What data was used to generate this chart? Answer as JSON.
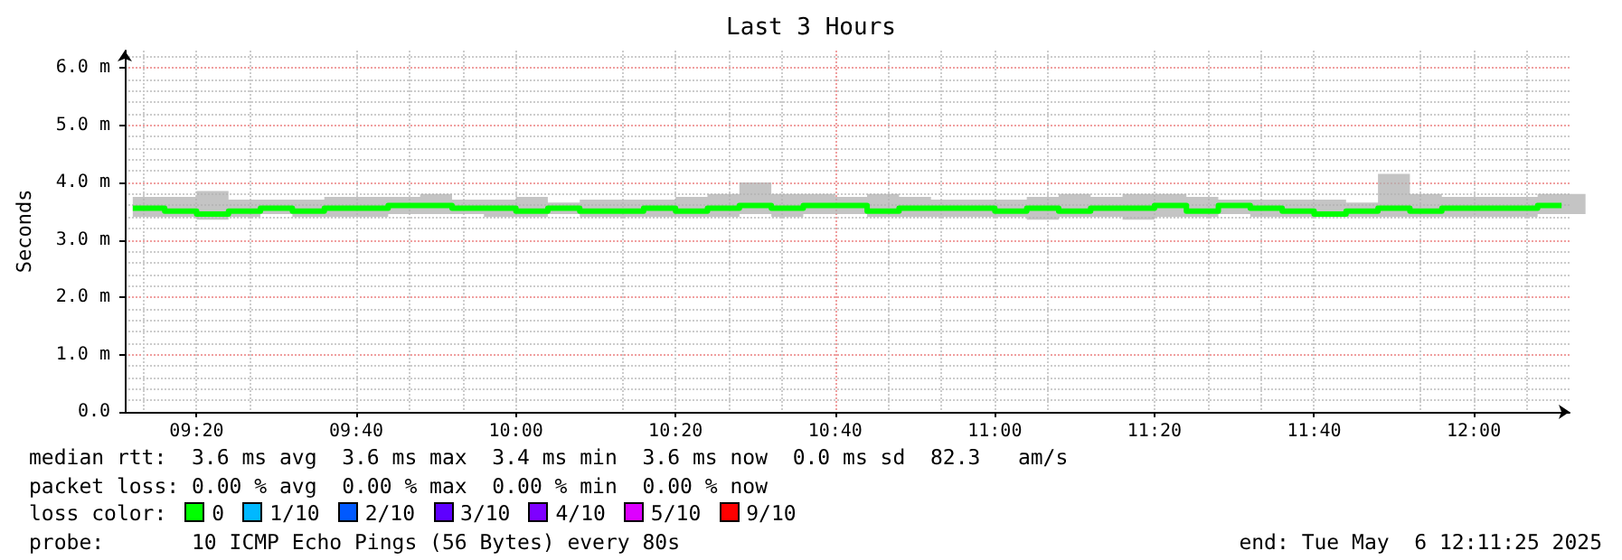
{
  "chart_data": {
    "type": "step",
    "title": "Last 3 Hours",
    "ylabel": "Seconds",
    "x": [
      "2025-05-06T09:12",
      "2025-05-06T09:16",
      "2025-05-06T09:20",
      "2025-05-06T09:24",
      "2025-05-06T09:28",
      "2025-05-06T09:32",
      "2025-05-06T09:36",
      "2025-05-06T09:40",
      "2025-05-06T09:44",
      "2025-05-06T09:48",
      "2025-05-06T09:52",
      "2025-05-06T09:56",
      "2025-05-06T10:00",
      "2025-05-06T10:04",
      "2025-05-06T10:08",
      "2025-05-06T10:12",
      "2025-05-06T10:16",
      "2025-05-06T10:20",
      "2025-05-06T10:24",
      "2025-05-06T10:28",
      "2025-05-06T10:32",
      "2025-05-06T10:36",
      "2025-05-06T10:40",
      "2025-05-06T10:44",
      "2025-05-06T10:48",
      "2025-05-06T10:52",
      "2025-05-06T10:56",
      "2025-05-06T11:00",
      "2025-05-06T11:04",
      "2025-05-06T11:08",
      "2025-05-06T11:12",
      "2025-05-06T11:16",
      "2025-05-06T11:20",
      "2025-05-06T11:24",
      "2025-05-06T11:28",
      "2025-05-06T11:32",
      "2025-05-06T11:36",
      "2025-05-06T11:40",
      "2025-05-06T11:44",
      "2025-05-06T11:48",
      "2025-05-06T11:52",
      "2025-05-06T11:56",
      "2025-05-06T12:00",
      "2025-05-06T12:04",
      "2025-05-06T12:08",
      "2025-05-06T12:11"
    ],
    "series": [
      {
        "color": "#00ff00",
        "values": [
          3.55,
          3.5,
          3.45,
          3.5,
          3.55,
          3.5,
          3.55,
          3.55,
          3.6,
          3.6,
          3.55,
          3.55,
          3.5,
          3.55,
          3.5,
          3.5,
          3.55,
          3.5,
          3.55,
          3.6,
          3.55,
          3.6,
          3.6,
          3.5,
          3.55,
          3.55,
          3.55,
          3.5,
          3.55,
          3.5,
          3.55,
          3.55,
          3.6,
          3.5,
          3.6,
          3.55,
          3.5,
          3.45,
          3.5,
          3.55,
          3.5,
          3.55,
          3.55,
          3.55,
          3.6,
          3.6
        ],
        "lower": [
          3.4,
          3.4,
          3.35,
          3.4,
          3.45,
          3.4,
          3.4,
          3.4,
          3.45,
          3.45,
          3.45,
          3.4,
          3.4,
          3.45,
          3.4,
          3.4,
          3.4,
          3.4,
          3.4,
          3.45,
          3.4,
          3.45,
          3.45,
          3.4,
          3.4,
          3.4,
          3.4,
          3.4,
          3.35,
          3.4,
          3.4,
          3.35,
          3.4,
          3.4,
          3.45,
          3.4,
          3.4,
          3.4,
          3.4,
          3.4,
          3.4,
          3.4,
          3.4,
          3.4,
          3.45,
          3.45
        ],
        "upper": [
          3.75,
          3.75,
          3.85,
          3.7,
          3.7,
          3.7,
          3.75,
          3.75,
          3.75,
          3.8,
          3.7,
          3.7,
          3.75,
          3.65,
          3.7,
          3.7,
          3.7,
          3.75,
          3.8,
          4.0,
          3.8,
          3.8,
          3.75,
          3.8,
          3.75,
          3.7,
          3.7,
          3.7,
          3.75,
          3.8,
          3.75,
          3.8,
          3.8,
          3.75,
          3.7,
          3.7,
          3.7,
          3.7,
          3.65,
          4.15,
          3.8,
          3.75,
          3.75,
          3.75,
          3.8,
          3.8
        ]
      }
    ],
    "xlim": [
      "2025-05-06T09:11",
      "2025-05-06T12:12"
    ],
    "xticks": [
      {
        "value": "2025-05-06T09:20",
        "label": "09:20"
      },
      {
        "value": "2025-05-06T09:40",
        "label": "09:40"
      },
      {
        "value": "2025-05-06T10:00",
        "label": "10:00"
      },
      {
        "value": "2025-05-06T10:20",
        "label": "10:20"
      },
      {
        "value": "2025-05-06T10:40",
        "label": "10:40"
      },
      {
        "value": "2025-05-06T11:00",
        "label": "11:00"
      },
      {
        "value": "2025-05-06T11:20",
        "label": "11:20"
      },
      {
        "value": "2025-05-06T11:40",
        "label": "11:40"
      },
      {
        "value": "2025-05-06T12:00",
        "label": "12:00"
      }
    ],
    "ylim": [
      0,
      6.3
    ],
    "yticks": [
      {
        "value": 0,
        "label": "0.0"
      },
      {
        "value": 1,
        "label": "1.0 m"
      },
      {
        "value": 2,
        "label": "2.0 m"
      },
      {
        "value": 3,
        "label": "3.0 m"
      },
      {
        "value": 4,
        "label": "4.0 m"
      },
      {
        "value": 5,
        "label": "5.0 m"
      },
      {
        "value": 6,
        "label": "6.0 m"
      }
    ],
    "grid": true,
    "annotations": [
      "median rtt:  3.6 ms avg  3.6 ms max  3.4 ms min  3.6 ms now  0.0 ms sd  82.3   am/s",
      "packet loss: 0.00 % avg  0.00 % max  0.00 % min  0.00 % now",
      "loss color:",
      "0",
      "1/10",
      "2/10",
      "3/10",
      "4/10",
      "5/10",
      "9/10",
      "probe:       10 ICMP Echo Pings (56 Bytes) every 80s",
      "end: Tue May  6 12:11:25 2025"
    ]
  }
}
